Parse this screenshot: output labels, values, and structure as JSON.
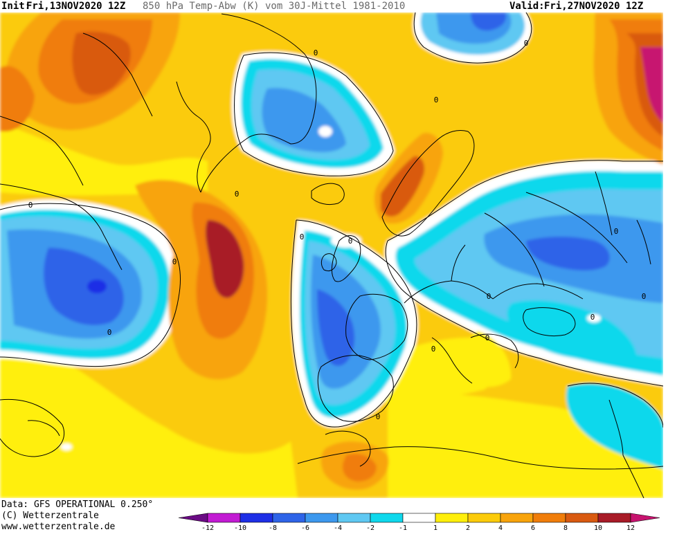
{
  "header": {
    "init_label": "Init:",
    "init_value": "Fri,13NOV2020 12Z",
    "title": "850 hPa Temp-Abw (K) vom 30J-Mittel 1981-2010",
    "valid_label": "Valid:",
    "valid_value": "Fri,27NOV2020 12Z"
  },
  "footer": {
    "data_source": "Data: GFS OPERATIONAL 0.250°",
    "copyright": "(C) Wetterzentrale",
    "website": "www.wetterzentrale.de"
  },
  "legend": {
    "tick_labels": [
      "-12",
      "-10",
      "-8",
      "-6",
      "-4",
      "-2",
      "-1",
      "1",
      "2",
      "4",
      "6",
      "8",
      "10",
      "12"
    ],
    "colors": [
      "#6a0b84",
      "#c21bd3",
      "#1e2fe6",
      "#2e64e8",
      "#3c98ee",
      "#5fc8f2",
      "#0fd8ec",
      "#ffffff",
      "#ffef0b",
      "#fbcb0a",
      "#f8a40c",
      "#f07d0a",
      "#d95a10",
      "#a81b27",
      "#c7136f"
    ]
  },
  "map": {
    "region": "North Atlantic and Europe",
    "overlay": "coastlines and national borders",
    "isoline_labels": [
      "0",
      "0",
      "0",
      "0",
      "0",
      "0",
      "0",
      "0",
      "0",
      "0",
      "0",
      "0",
      "0",
      "0",
      "0",
      "0"
    ]
  }
}
